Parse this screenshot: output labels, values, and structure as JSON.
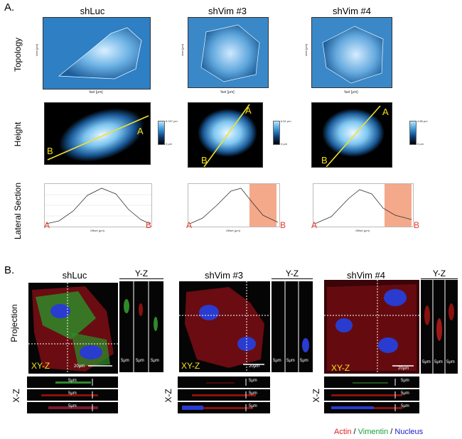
{
  "panel_a": {
    "label": "A.",
    "columns": [
      "shLuc",
      "shVim #3",
      "shVim #4"
    ],
    "rows": [
      "Topology",
      "Height",
      "Lateral Section"
    ],
    "topology_axis": {
      "ylabel": "slow [μm]",
      "xlabel": "fast [μm]",
      "shluc_xticks": [
        "0",
        "20",
        "40",
        "60"
      ],
      "shvim3_xticks": [
        "0",
        "10",
        "20",
        "30",
        "40"
      ],
      "shvim4_xticks": [
        "0",
        "10",
        "20",
        "30",
        "40"
      ]
    },
    "height_axis": {
      "ylabel": "slow [μm]",
      "xlabel": "fast [μm]"
    },
    "colorbars": [
      {
        "top": "5.037 μm",
        "bottom": "0 μm"
      },
      {
        "top": "6.61 μm",
        "bottom": "0 μm"
      },
      {
        "top": "4.88 μm",
        "bottom": "0 μm"
      }
    ],
    "line_label_start": "B",
    "line_label_end": "A",
    "section_endpoints": {
      "left": "A",
      "right": "B"
    },
    "section_axis": {
      "ylabel": "Height (measured) (μm)",
      "xlabel": "Offset (μm)"
    },
    "section_yticks": [
      "0",
      "1",
      "2",
      "3",
      "4",
      "5"
    ],
    "section_shluc_xticks": [
      "0",
      "20",
      "40",
      "60"
    ],
    "section_shvim3_xticks": [
      "0",
      "5",
      "10",
      "15",
      "20",
      "25",
      "30",
      "35"
    ],
    "section_shvim4_xticks": [
      "0",
      "10",
      "20",
      "30",
      "40"
    ]
  },
  "panel_b": {
    "label": "B.",
    "columns": [
      "shLuc",
      "shVim #3",
      "shVim #4"
    ],
    "projection_label": "Projection",
    "xz_label": "X-Z",
    "yz_label": "Y-Z",
    "xyz_label": "XY-Z",
    "scale_20": "20μm",
    "scale_5": "5μm",
    "legend": [
      {
        "text": "Actin",
        "color": "#e02020"
      },
      {
        "text": " / ",
        "color": "#000000"
      },
      {
        "text": "Vimentin",
        "color": "#1aa03a"
      },
      {
        "text": " / ",
        "color": "#000000"
      },
      {
        "text": "Nucleus",
        "color": "#2020c8"
      }
    ]
  }
}
